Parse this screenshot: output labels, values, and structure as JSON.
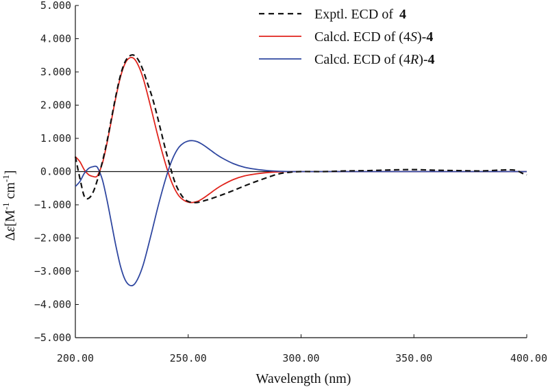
{
  "chart_data": {
    "type": "line",
    "title": "",
    "xlabel": "Wavelength (nm)",
    "ylabel": {
      "prefix": "Δ",
      "symbol": "ε",
      "open": "[M",
      "exp1": "-1",
      "middle": " cm",
      "exp2": "-1",
      "close": "]"
    },
    "xlim": [
      200,
      400
    ],
    "ylim": [
      -5,
      5
    ],
    "x_ticks": [
      200,
      250,
      300,
      350,
      400
    ],
    "x_tick_labels": [
      "200.00",
      "250.00",
      "300.00",
      "350.00",
      "400.00"
    ],
    "y_ticks": [
      5,
      4,
      3,
      2,
      1,
      0,
      -1,
      -2,
      -3,
      -4,
      -5
    ],
    "y_tick_labels": [
      "5.000",
      "4.000",
      "3.000",
      "2.000",
      "1.000",
      "0.000",
      "−1.000",
      "−2.000",
      "−3.000",
      "−4.000",
      "−5.000"
    ],
    "zero_line": true,
    "legend_position": "top-right",
    "series": [
      {
        "name": "Exptl. ECD of 4",
        "legend": {
          "prefix": "Exptl. ECD of ",
          "compound": "4",
          "config": "",
          "suffix": ""
        },
        "color": "#111111",
        "dash": "dashed",
        "x": [
          200,
          202,
          204,
          206,
          208,
          210,
          212,
          214,
          216,
          218,
          220,
          222,
          224,
          226,
          228,
          230,
          232,
          234,
          236,
          238,
          240,
          242,
          244,
          246,
          248,
          250,
          252,
          254,
          256,
          258,
          260,
          265,
          270,
          275,
          280,
          285,
          290,
          295,
          300,
          310,
          320,
          330,
          340,
          350,
          360,
          370,
          380,
          390,
          395,
          398,
          400
        ],
        "y": [
          0.45,
          -0.2,
          -0.75,
          -0.8,
          -0.6,
          -0.2,
          0.3,
          0.9,
          1.6,
          2.3,
          2.9,
          3.3,
          3.48,
          3.5,
          3.35,
          3.05,
          2.65,
          2.25,
          1.75,
          1.2,
          0.65,
          0.15,
          -0.3,
          -0.6,
          -0.8,
          -0.9,
          -0.93,
          -0.93,
          -0.9,
          -0.86,
          -0.82,
          -0.7,
          -0.57,
          -0.43,
          -0.3,
          -0.18,
          -0.07,
          -0.02,
          0.0,
          0.0,
          0.02,
          0.03,
          0.05,
          0.06,
          0.04,
          0.03,
          0.02,
          0.05,
          0.04,
          -0.05,
          -0.1
        ]
      },
      {
        "name": "Calcd. ECD of (4S)-4",
        "legend": {
          "prefix": "Calcd. ECD of (4",
          "config": "S",
          "suffix": ")-",
          "compound": "4"
        },
        "color": "#e0231b",
        "dash": "solid",
        "x": [
          200,
          202,
          204,
          206,
          208,
          209,
          210,
          212,
          214,
          216,
          218,
          220,
          222,
          224,
          226,
          228,
          230,
          232,
          234,
          236,
          238,
          240,
          242,
          244,
          246,
          248,
          250,
          252,
          254,
          256,
          258,
          260,
          262,
          265,
          270,
          275,
          280,
          285,
          290,
          295,
          300,
          310,
          320,
          400
        ],
        "y": [
          0.45,
          0.3,
          0.05,
          -0.1,
          -0.15,
          -0.16,
          -0.1,
          0.25,
          0.85,
          1.55,
          2.25,
          2.85,
          3.25,
          3.42,
          3.4,
          3.18,
          2.82,
          2.32,
          1.78,
          1.22,
          0.7,
          0.22,
          -0.2,
          -0.52,
          -0.74,
          -0.86,
          -0.92,
          -0.93,
          -0.9,
          -0.83,
          -0.74,
          -0.64,
          -0.54,
          -0.41,
          -0.24,
          -0.13,
          -0.07,
          -0.03,
          -0.01,
          0.0,
          0.0,
          0.0,
          0.0,
          0.0
        ]
      },
      {
        "name": "Calcd. ECD of (4R)-4",
        "legend": {
          "prefix": "Calcd. ECD of (4",
          "config": "R",
          "suffix": ")-",
          "compound": "4"
        },
        "color": "#2f47a0",
        "dash": "solid",
        "x": [
          200,
          202,
          204,
          206,
          208,
          209,
          210,
          212,
          214,
          216,
          218,
          220,
          222,
          224,
          226,
          228,
          230,
          232,
          234,
          236,
          238,
          240,
          242,
          244,
          246,
          248,
          250,
          252,
          254,
          256,
          258,
          260,
          262,
          265,
          270,
          275,
          280,
          285,
          290,
          295,
          300,
          310,
          320,
          400
        ],
        "y": [
          -0.45,
          -0.3,
          -0.05,
          0.1,
          0.15,
          0.16,
          0.1,
          -0.25,
          -0.85,
          -1.55,
          -2.25,
          -2.85,
          -3.25,
          -3.42,
          -3.4,
          -3.18,
          -2.82,
          -2.32,
          -1.78,
          -1.22,
          -0.7,
          -0.22,
          0.2,
          0.52,
          0.74,
          0.86,
          0.92,
          0.93,
          0.9,
          0.83,
          0.74,
          0.64,
          0.54,
          0.41,
          0.24,
          0.13,
          0.07,
          0.03,
          0.01,
          0.0,
          0.0,
          0.0,
          0.0,
          0.0
        ]
      }
    ]
  }
}
